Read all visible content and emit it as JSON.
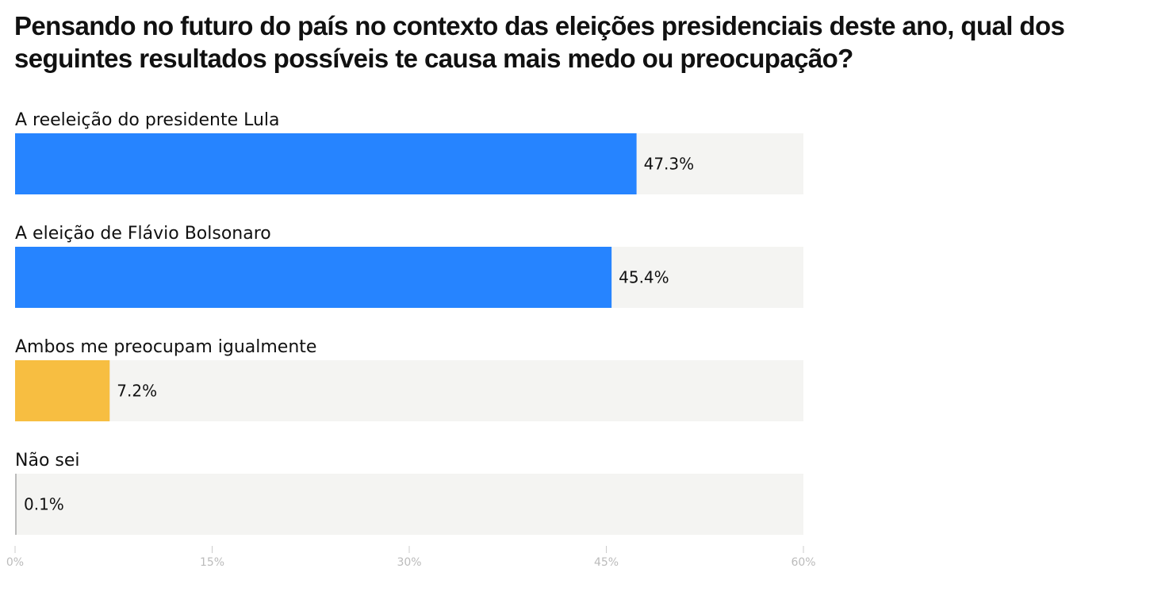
{
  "chart_data": {
    "type": "bar",
    "orientation": "horizontal",
    "title": "Pensando no futuro do país no contexto das eleições presidenciais deste ano, qual dos seguintes resultados possíveis te causa mais medo ou preocupação?",
    "categories": [
      "A reeleição do presidente Lula",
      "A eleição de Flávio Bolsonaro",
      "Ambos me preocupam igualmente",
      "Não sei"
    ],
    "values": [
      47.3,
      45.4,
      7.2,
      0.1
    ],
    "value_labels": [
      "47.3%",
      "45.4%",
      "7.2%",
      "0.1%"
    ],
    "colors": [
      "#2684ff",
      "#2684ff",
      "#f7be41",
      "#bbbbbb"
    ],
    "track_color": "#f4f4f2",
    "xlim": [
      0,
      60
    ],
    "xticks": [
      0,
      15,
      30,
      45,
      60
    ],
    "xtick_labels": [
      "0%",
      "15%",
      "30%",
      "45%",
      "60%"
    ],
    "grid": false
  }
}
